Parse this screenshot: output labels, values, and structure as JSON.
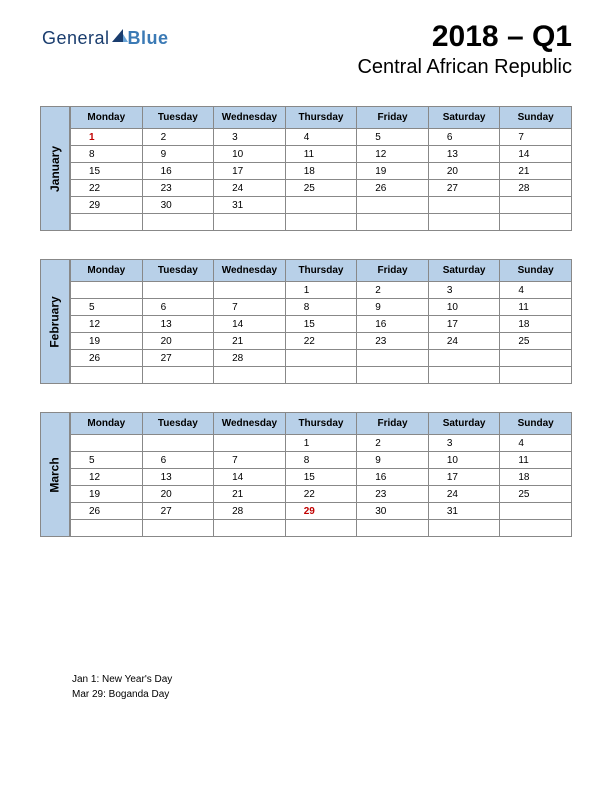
{
  "logo": {
    "text1": "General",
    "text2": "Blue"
  },
  "header": {
    "title": "2018 – Q1",
    "subtitle": "Central African Republic"
  },
  "days": [
    "Monday",
    "Tuesday",
    "Wednesday",
    "Thursday",
    "Friday",
    "Saturday",
    "Sunday"
  ],
  "months": [
    {
      "name": "January",
      "weeks": [
        [
          {
            "d": "1",
            "h": true
          },
          {
            "d": "2"
          },
          {
            "d": "3"
          },
          {
            "d": "4"
          },
          {
            "d": "5"
          },
          {
            "d": "6"
          },
          {
            "d": "7"
          }
        ],
        [
          {
            "d": "8"
          },
          {
            "d": "9"
          },
          {
            "d": "10"
          },
          {
            "d": "11"
          },
          {
            "d": "12"
          },
          {
            "d": "13"
          },
          {
            "d": "14"
          }
        ],
        [
          {
            "d": "15"
          },
          {
            "d": "16"
          },
          {
            "d": "17"
          },
          {
            "d": "18"
          },
          {
            "d": "19"
          },
          {
            "d": "20"
          },
          {
            "d": "21"
          }
        ],
        [
          {
            "d": "22"
          },
          {
            "d": "23"
          },
          {
            "d": "24"
          },
          {
            "d": "25"
          },
          {
            "d": "26"
          },
          {
            "d": "27"
          },
          {
            "d": "28"
          }
        ],
        [
          {
            "d": "29"
          },
          {
            "d": "30"
          },
          {
            "d": "31"
          },
          {
            "d": ""
          },
          {
            "d": ""
          },
          {
            "d": ""
          },
          {
            "d": ""
          }
        ],
        [
          {
            "d": ""
          },
          {
            "d": ""
          },
          {
            "d": ""
          },
          {
            "d": ""
          },
          {
            "d": ""
          },
          {
            "d": ""
          },
          {
            "d": ""
          }
        ]
      ]
    },
    {
      "name": "February",
      "weeks": [
        [
          {
            "d": ""
          },
          {
            "d": ""
          },
          {
            "d": ""
          },
          {
            "d": "1"
          },
          {
            "d": "2"
          },
          {
            "d": "3"
          },
          {
            "d": "4"
          }
        ],
        [
          {
            "d": "5"
          },
          {
            "d": "6"
          },
          {
            "d": "7"
          },
          {
            "d": "8"
          },
          {
            "d": "9"
          },
          {
            "d": "10"
          },
          {
            "d": "11"
          }
        ],
        [
          {
            "d": "12"
          },
          {
            "d": "13"
          },
          {
            "d": "14"
          },
          {
            "d": "15"
          },
          {
            "d": "16"
          },
          {
            "d": "17"
          },
          {
            "d": "18"
          }
        ],
        [
          {
            "d": "19"
          },
          {
            "d": "20"
          },
          {
            "d": "21"
          },
          {
            "d": "22"
          },
          {
            "d": "23"
          },
          {
            "d": "24"
          },
          {
            "d": "25"
          }
        ],
        [
          {
            "d": "26"
          },
          {
            "d": "27"
          },
          {
            "d": "28"
          },
          {
            "d": ""
          },
          {
            "d": ""
          },
          {
            "d": ""
          },
          {
            "d": ""
          }
        ],
        [
          {
            "d": ""
          },
          {
            "d": ""
          },
          {
            "d": ""
          },
          {
            "d": ""
          },
          {
            "d": ""
          },
          {
            "d": ""
          },
          {
            "d": ""
          }
        ]
      ]
    },
    {
      "name": "March",
      "weeks": [
        [
          {
            "d": ""
          },
          {
            "d": ""
          },
          {
            "d": ""
          },
          {
            "d": "1"
          },
          {
            "d": "2"
          },
          {
            "d": "3"
          },
          {
            "d": "4"
          }
        ],
        [
          {
            "d": "5"
          },
          {
            "d": "6"
          },
          {
            "d": "7"
          },
          {
            "d": "8"
          },
          {
            "d": "9"
          },
          {
            "d": "10"
          },
          {
            "d": "11"
          }
        ],
        [
          {
            "d": "12"
          },
          {
            "d": "13"
          },
          {
            "d": "14"
          },
          {
            "d": "15"
          },
          {
            "d": "16"
          },
          {
            "d": "17"
          },
          {
            "d": "18"
          }
        ],
        [
          {
            "d": "19"
          },
          {
            "d": "20"
          },
          {
            "d": "21"
          },
          {
            "d": "22"
          },
          {
            "d": "23"
          },
          {
            "d": "24"
          },
          {
            "d": "25"
          }
        ],
        [
          {
            "d": "26"
          },
          {
            "d": "27"
          },
          {
            "d": "28"
          },
          {
            "d": "29",
            "h": true
          },
          {
            "d": "30"
          },
          {
            "d": "31"
          },
          {
            "d": ""
          }
        ],
        [
          {
            "d": ""
          },
          {
            "d": ""
          },
          {
            "d": ""
          },
          {
            "d": ""
          },
          {
            "d": ""
          },
          {
            "d": ""
          },
          {
            "d": ""
          }
        ]
      ]
    }
  ],
  "notes": [
    "Jan 1: New Year's Day",
    "Mar 29: Boganda Day"
  ],
  "colors": {
    "header_bg": "#b8d0e8",
    "border": "#888888",
    "holiday": "#c00000",
    "logo1": "#1a3d6e",
    "logo2": "#3b7ab5"
  }
}
